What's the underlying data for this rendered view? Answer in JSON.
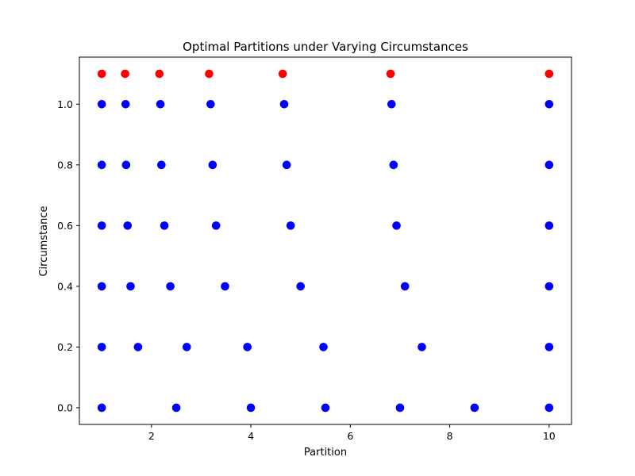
{
  "chart_data": {
    "type": "scatter",
    "title": "Optimal Partitions under Varying Circumstances",
    "xlabel": "Partition",
    "ylabel": "Circumstance",
    "xlim": [
      0.55,
      10.45
    ],
    "ylim": [
      -0.055,
      1.155
    ],
    "x_ticks": [
      2,
      4,
      6,
      8,
      10
    ],
    "x_tick_labels": [
      "2",
      "4",
      "6",
      "8",
      "10"
    ],
    "y_ticks": [
      0.0,
      0.2,
      0.4,
      0.6,
      0.8,
      1.0
    ],
    "y_tick_labels": [
      "0.0",
      "0.2",
      "0.4",
      "0.6",
      "0.8",
      "1.0"
    ],
    "grid": false,
    "series": [
      {
        "color": "#0000ff",
        "points": [
          [
            1.0,
            0.0
          ],
          [
            2.5,
            0.0
          ],
          [
            4.0,
            0.0
          ],
          [
            5.5,
            0.0
          ],
          [
            7.0,
            0.0
          ],
          [
            8.5,
            0.0
          ],
          [
            10.0,
            0.0
          ],
          [
            1.0,
            0.2
          ],
          [
            1.73,
            0.2
          ],
          [
            2.71,
            0.2
          ],
          [
            3.93,
            0.2
          ],
          [
            5.46,
            0.2
          ],
          [
            7.44,
            0.2
          ],
          [
            10.0,
            0.2
          ],
          [
            1.0,
            0.4
          ],
          [
            1.58,
            0.4
          ],
          [
            2.38,
            0.4
          ],
          [
            3.48,
            0.4
          ],
          [
            5.0,
            0.4
          ],
          [
            7.1,
            0.4
          ],
          [
            10.0,
            0.4
          ],
          [
            1.0,
            0.6
          ],
          [
            1.52,
            0.6
          ],
          [
            2.26,
            0.6
          ],
          [
            3.3,
            0.6
          ],
          [
            4.8,
            0.6
          ],
          [
            6.93,
            0.6
          ],
          [
            10.0,
            0.6
          ],
          [
            1.0,
            0.8
          ],
          [
            1.49,
            0.8
          ],
          [
            2.2,
            0.8
          ],
          [
            3.23,
            0.8
          ],
          [
            4.72,
            0.8
          ],
          [
            6.87,
            0.8
          ],
          [
            10.0,
            0.8
          ],
          [
            1.0,
            1.0
          ],
          [
            1.48,
            1.0
          ],
          [
            2.18,
            1.0
          ],
          [
            3.19,
            1.0
          ],
          [
            4.67,
            1.0
          ],
          [
            6.83,
            1.0
          ],
          [
            10.0,
            1.0
          ]
        ]
      },
      {
        "color": "#ff0000",
        "points": [
          [
            1.0,
            1.1
          ],
          [
            1.47,
            1.1
          ],
          [
            2.16,
            1.1
          ],
          [
            3.16,
            1.1
          ],
          [
            4.64,
            1.1
          ],
          [
            6.81,
            1.1
          ],
          [
            10.0,
            1.1
          ]
        ]
      }
    ]
  }
}
